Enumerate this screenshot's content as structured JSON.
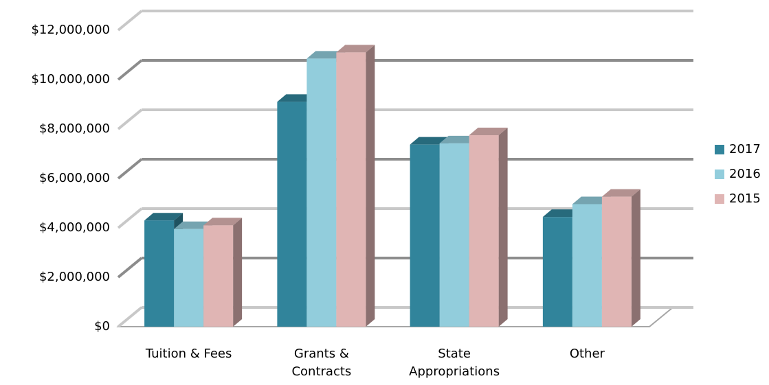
{
  "chart_data": {
    "type": "bar3d",
    "categories": [
      "Tuition & Fees",
      "Grants & Contracts",
      "State Appropriations",
      "Other"
    ],
    "series": [
      {
        "name": "2017",
        "color": "#31849b",
        "values": [
          4300000,
          9100000,
          7370000,
          4440000
        ]
      },
      {
        "name": "2016",
        "color": "#92cddc",
        "values": [
          3950000,
          10850000,
          7420000,
          4960000
        ]
      },
      {
        "name": "2015",
        "color": "#e0b5b4",
        "values": [
          4100000,
          11100000,
          7750000,
          5260000
        ]
      }
    ],
    "ylim": [
      0,
      12000000
    ],
    "yticks": [
      {
        "value": 0,
        "label": "$0"
      },
      {
        "value": 2000000,
        "label": "$2,000,000"
      },
      {
        "value": 4000000,
        "label": "$4,000,000"
      },
      {
        "value": 6000000,
        "label": "$6,000,000"
      },
      {
        "value": 8000000,
        "label": "$8,000,000"
      },
      {
        "value": 10000000,
        "label": "$10,000,000"
      },
      {
        "value": 12000000,
        "label": "$12,000,000"
      }
    ],
    "grid": true,
    "legend": "right"
  }
}
